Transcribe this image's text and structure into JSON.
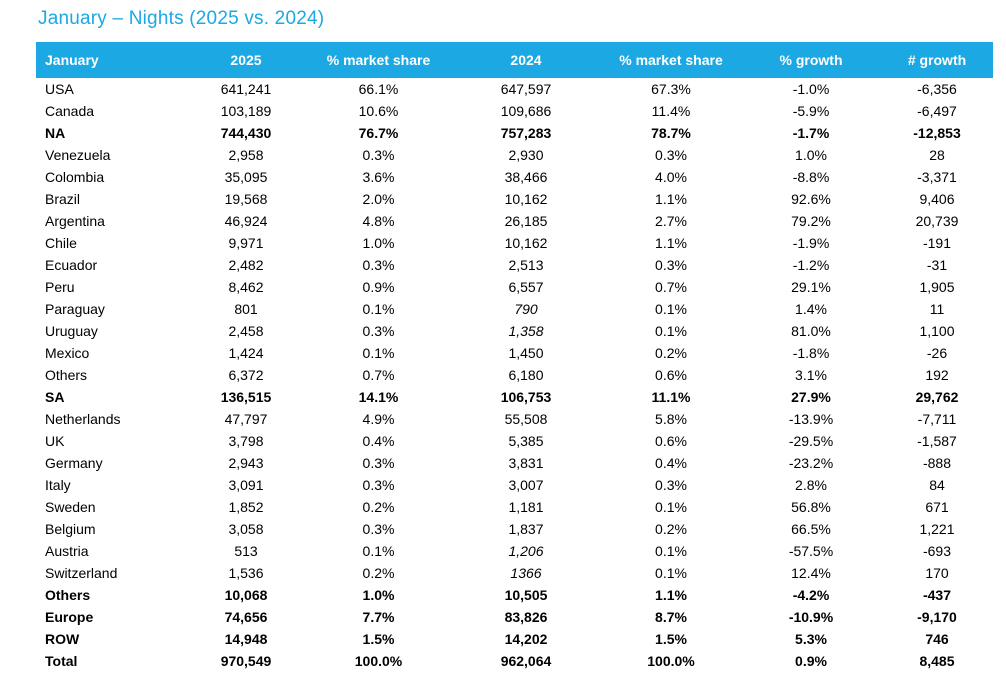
{
  "title": "January – Nights (2025 vs. 2024)",
  "colors": {
    "accent": "#1BA8E3",
    "header_text": "#ffffff",
    "body_text": "#000000"
  },
  "chart_data": {
    "type": "table",
    "title": "January – Nights (2025 vs. 2024)",
    "columns": [
      "January",
      "2025",
      "% market share",
      "2024",
      "% market share",
      "% growth",
      "# growth"
    ],
    "rows": [
      {
        "country": "USA",
        "nights_2025": "641,241",
        "share_2025": "66.1%",
        "nights_2024": "647,597",
        "share_2024": "67.3%",
        "pct_growth": "-1.0%",
        "num_growth": "-6,356",
        "bold": false,
        "italic_2024": false
      },
      {
        "country": "Canada",
        "nights_2025": "103,189",
        "share_2025": "10.6%",
        "nights_2024": "109,686",
        "share_2024": "11.4%",
        "pct_growth": "-5.9%",
        "num_growth": "-6,497",
        "bold": false,
        "italic_2024": false
      },
      {
        "country": "NA",
        "nights_2025": "744,430",
        "share_2025": "76.7%",
        "nights_2024": "757,283",
        "share_2024": "78.7%",
        "pct_growth": "-1.7%",
        "num_growth": "-12,853",
        "bold": true,
        "italic_2024": false
      },
      {
        "country": "Venezuela",
        "nights_2025": "2,958",
        "share_2025": "0.3%",
        "nights_2024": "2,930",
        "share_2024": "0.3%",
        "pct_growth": "1.0%",
        "num_growth": "28",
        "bold": false,
        "italic_2024": false
      },
      {
        "country": "Colombia",
        "nights_2025": "35,095",
        "share_2025": "3.6%",
        "nights_2024": "38,466",
        "share_2024": "4.0%",
        "pct_growth": "-8.8%",
        "num_growth": "-3,371",
        "bold": false,
        "italic_2024": false
      },
      {
        "country": "Brazil",
        "nights_2025": "19,568",
        "share_2025": "2.0%",
        "nights_2024": "10,162",
        "share_2024": "1.1%",
        "pct_growth": "92.6%",
        "num_growth": "9,406",
        "bold": false,
        "italic_2024": false
      },
      {
        "country": "Argentina",
        "nights_2025": "46,924",
        "share_2025": "4.8%",
        "nights_2024": "26,185",
        "share_2024": "2.7%",
        "pct_growth": "79.2%",
        "num_growth": "20,739",
        "bold": false,
        "italic_2024": false
      },
      {
        "country": "Chile",
        "nights_2025": "9,971",
        "share_2025": "1.0%",
        "nights_2024": "10,162",
        "share_2024": "1.1%",
        "pct_growth": "-1.9%",
        "num_growth": "-191",
        "bold": false,
        "italic_2024": false
      },
      {
        "country": "Ecuador",
        "nights_2025": "2,482",
        "share_2025": "0.3%",
        "nights_2024": "2,513",
        "share_2024": "0.3%",
        "pct_growth": "-1.2%",
        "num_growth": "-31",
        "bold": false,
        "italic_2024": false
      },
      {
        "country": "Peru",
        "nights_2025": "8,462",
        "share_2025": "0.9%",
        "nights_2024": "6,557",
        "share_2024": "0.7%",
        "pct_growth": "29.1%",
        "num_growth": "1,905",
        "bold": false,
        "italic_2024": false
      },
      {
        "country": "Paraguay",
        "nights_2025": "801",
        "share_2025": "0.1%",
        "nights_2024": "790",
        "share_2024": "0.1%",
        "pct_growth": "1.4%",
        "num_growth": "11",
        "bold": false,
        "italic_2024": true
      },
      {
        "country": "Uruguay",
        "nights_2025": "2,458",
        "share_2025": "0.3%",
        "nights_2024": "1,358",
        "share_2024": "0.1%",
        "pct_growth": "81.0%",
        "num_growth": "1,100",
        "bold": false,
        "italic_2024": true
      },
      {
        "country": "Mexico",
        "nights_2025": "1,424",
        "share_2025": "0.1%",
        "nights_2024": "1,450",
        "share_2024": "0.2%",
        "pct_growth": "-1.8%",
        "num_growth": "-26",
        "bold": false,
        "italic_2024": false
      },
      {
        "country": "Others",
        "nights_2025": "6,372",
        "share_2025": "0.7%",
        "nights_2024": "6,180",
        "share_2024": "0.6%",
        "pct_growth": "3.1%",
        "num_growth": "192",
        "bold": false,
        "italic_2024": false
      },
      {
        "country": "SA",
        "nights_2025": "136,515",
        "share_2025": "14.1%",
        "nights_2024": "106,753",
        "share_2024": "11.1%",
        "pct_growth": "27.9%",
        "num_growth": "29,762",
        "bold": true,
        "italic_2024": false
      },
      {
        "country": "Netherlands",
        "nights_2025": "47,797",
        "share_2025": "4.9%",
        "nights_2024": "55,508",
        "share_2024": "5.8%",
        "pct_growth": "-13.9%",
        "num_growth": "-7,711",
        "bold": false,
        "italic_2024": false
      },
      {
        "country": "UK",
        "nights_2025": "3,798",
        "share_2025": "0.4%",
        "nights_2024": "5,385",
        "share_2024": "0.6%",
        "pct_growth": "-29.5%",
        "num_growth": "-1,587",
        "bold": false,
        "italic_2024": false
      },
      {
        "country": "Germany",
        "nights_2025": "2,943",
        "share_2025": "0.3%",
        "nights_2024": "3,831",
        "share_2024": "0.4%",
        "pct_growth": "-23.2%",
        "num_growth": "-888",
        "bold": false,
        "italic_2024": false
      },
      {
        "country": "Italy",
        "nights_2025": "3,091",
        "share_2025": "0.3%",
        "nights_2024": "3,007",
        "share_2024": "0.3%",
        "pct_growth": "2.8%",
        "num_growth": "84",
        "bold": false,
        "italic_2024": false
      },
      {
        "country": "Sweden",
        "nights_2025": "1,852",
        "share_2025": "0.2%",
        "nights_2024": "1,181",
        "share_2024": "0.1%",
        "pct_growth": "56.8%",
        "num_growth": "671",
        "bold": false,
        "italic_2024": false
      },
      {
        "country": "Belgium",
        "nights_2025": "3,058",
        "share_2025": "0.3%",
        "nights_2024": "1,837",
        "share_2024": "0.2%",
        "pct_growth": "66.5%",
        "num_growth": "1,221",
        "bold": false,
        "italic_2024": false
      },
      {
        "country": "Austria",
        "nights_2025": "513",
        "share_2025": "0.1%",
        "nights_2024": "1,206",
        "share_2024": "0.1%",
        "pct_growth": "-57.5%",
        "num_growth": "-693",
        "bold": false,
        "italic_2024": true
      },
      {
        "country": "Switzerland",
        "nights_2025": "1,536",
        "share_2025": "0.2%",
        "nights_2024": "1366",
        "share_2024": "0.1%",
        "pct_growth": "12.4%",
        "num_growth": "170",
        "bold": false,
        "italic_2024": true
      },
      {
        "country": "Others",
        "nights_2025": "10,068",
        "share_2025": "1.0%",
        "nights_2024": "10,505",
        "share_2024": "1.1%",
        "pct_growth": "-4.2%",
        "num_growth": "-437",
        "bold": true,
        "italic_2024": false
      },
      {
        "country": "Europe",
        "nights_2025": "74,656",
        "share_2025": "7.7%",
        "nights_2024": "83,826",
        "share_2024": "8.7%",
        "pct_growth": "-10.9%",
        "num_growth": "-9,170",
        "bold": true,
        "italic_2024": false
      },
      {
        "country": "ROW",
        "nights_2025": "14,948",
        "share_2025": "1.5%",
        "nights_2024": "14,202",
        "share_2024": "1.5%",
        "pct_growth": "5.3%",
        "num_growth": "746",
        "bold": true,
        "italic_2024": false
      },
      {
        "country": "Total",
        "nights_2025": "970,549",
        "share_2025": "100.0%",
        "nights_2024": "962,064",
        "share_2024": "100.0%",
        "pct_growth": "0.9%",
        "num_growth": "8,485",
        "bold": true,
        "italic_2024": false
      }
    ]
  }
}
